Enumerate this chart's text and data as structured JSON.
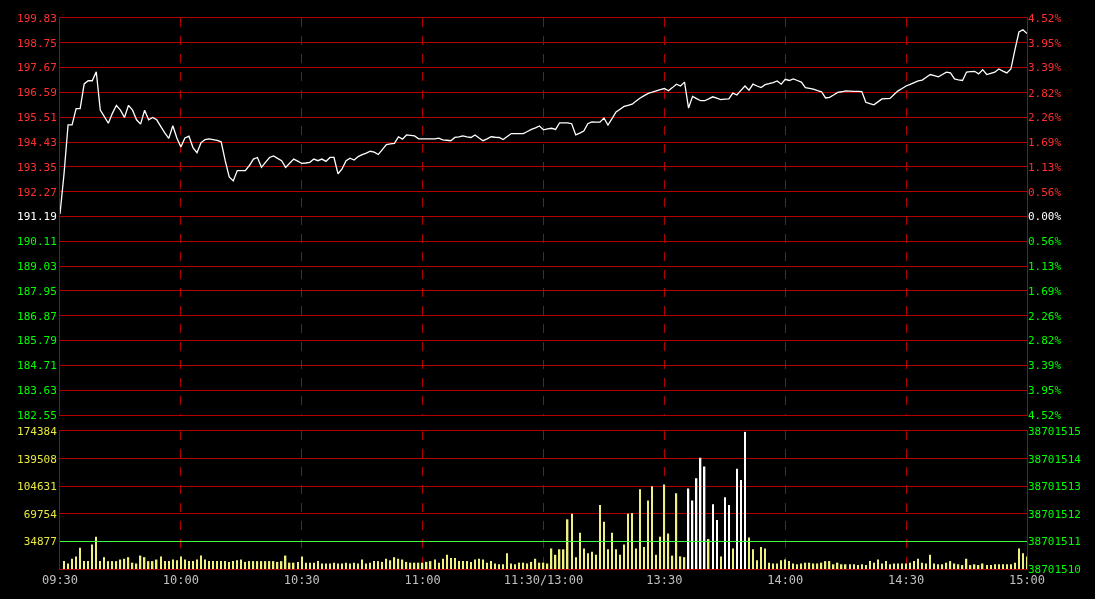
{
  "chart_data": [
    {
      "type": "line",
      "grid": true,
      "tick_labels": "y",
      "categories": [
        null,
        null,
        null,
        null,
        null,
        null,
        null,
        null,
        null,
        null,
        null,
        null,
        null,
        null,
        null,
        null,
        null,
        null,
        null,
        null,
        null,
        null,
        null,
        null,
        null,
        null,
        null,
        null,
        null,
        null,
        null,
        null,
        null,
        null,
        null,
        null,
        null,
        null,
        null,
        null,
        null,
        null,
        null,
        null,
        null,
        null,
        null,
        null,
        null,
        null,
        null,
        null,
        null,
        null,
        null,
        null,
        null,
        null,
        null,
        null,
        null,
        null,
        null,
        null,
        null,
        null,
        null,
        null,
        null,
        null,
        null,
        null,
        null,
        null,
        null,
        null,
        null,
        null,
        null,
        null,
        null,
        null,
        null,
        null,
        null,
        null,
        null,
        null,
        null,
        null,
        null,
        null,
        null,
        null,
        null,
        null,
        null,
        null,
        null,
        null,
        null,
        null,
        null,
        null,
        null,
        null,
        null,
        null,
        null,
        null,
        null,
        null,
        null,
        null,
        null,
        null,
        null,
        null,
        null,
        null,
        null,
        null,
        null,
        null,
        null,
        null,
        null,
        null,
        null,
        null,
        null,
        null,
        null,
        null,
        null,
        null,
        null,
        null,
        null,
        null,
        null,
        null,
        null,
        null,
        null,
        null,
        null,
        null,
        null,
        null,
        null,
        null,
        null,
        null,
        null,
        null,
        null,
        null,
        null,
        null,
        null,
        null,
        null,
        null,
        null,
        null,
        null,
        null,
        null,
        null,
        null,
        null,
        null,
        null,
        null,
        null,
        null,
        null,
        null,
        null,
        null,
        null,
        null,
        null,
        null,
        null,
        null,
        null,
        null,
        null,
        null,
        null,
        null,
        null,
        null,
        null,
        null,
        null,
        null,
        null,
        null,
        null,
        null,
        null,
        null,
        null,
        null,
        null,
        null,
        null,
        null,
        null,
        null,
        null,
        null,
        null,
        null,
        null,
        null,
        null,
        null,
        null,
        null,
        null,
        null,
        null,
        null,
        null,
        null,
        null,
        null,
        null,
        null,
        null,
        null,
        null,
        null,
        null,
        null,
        null,
        null
      ],
      "series": [
        {
          "color": "#ffffff",
          "values": [
            191.3,
            193.05,
            195.18,
            195.18,
            195.89,
            195.89,
            196.96,
            197.1,
            197.1,
            197.49,
            195.82,
            195.54,
            195.25,
            195.68,
            196.03,
            195.82,
            195.5,
            196.03,
            195.82,
            195.4,
            195.21,
            195.82,
            195.4,
            195.5,
            195.4,
            195.11,
            194.83,
            194.59,
            195.14,
            194.61,
            194.22,
            194.61,
            194.69,
            194.19,
            193.97,
            194.4,
            194.54,
            194.57,
            194.54,
            194.5,
            194.44,
            193.62,
            192.91,
            192.74,
            193.19,
            193.19,
            193.19,
            193.41,
            193.69,
            193.76,
            193.33,
            193.55,
            193.76,
            193.83,
            193.72,
            193.62,
            193.33,
            193.51,
            193.69,
            193.6,
            193.5,
            193.52,
            193.55,
            193.69,
            193.62,
            193.69,
            193.59,
            193.76,
            193.76,
            193.05,
            193.26,
            193.62,
            193.73,
            193.65,
            193.8,
            193.88,
            193.95,
            194.03,
            193.99,
            193.89,
            194.1,
            194.32,
            194.35,
            194.37,
            194.66,
            194.56,
            194.74,
            194.72,
            194.7,
            194.57,
            194.57,
            194.57,
            194.57,
            194.57,
            194.6,
            194.53,
            194.51,
            194.49,
            194.63,
            194.66,
            194.7,
            194.66,
            194.63,
            194.74,
            194.61,
            194.49,
            194.57,
            194.66,
            194.64,
            194.63,
            194.54,
            194.67,
            194.8,
            194.8,
            194.8,
            194.8,
            194.89,
            194.98,
            195.05,
            195.13,
            194.96,
            195.0,
            195.03,
            194.98,
            195.27,
            195.27,
            195.27,
            195.23,
            194.74,
            194.82,
            194.91,
            195.23,
            195.31,
            195.3,
            195.3,
            195.48,
            195.17,
            195.45,
            195.74,
            195.86,
            195.98,
            196.03,
            196.08,
            196.22,
            196.35,
            196.45,
            196.55,
            196.6,
            196.66,
            196.71,
            196.76,
            196.66,
            196.8,
            196.95,
            196.87,
            197.04,
            195.91,
            196.42,
            196.32,
            196.23,
            196.23,
            196.31,
            196.4,
            196.34,
            196.28,
            196.3,
            196.31,
            196.56,
            196.48,
            196.68,
            196.87,
            196.69,
            196.95,
            196.87,
            196.8,
            196.93,
            196.97,
            197.02,
            197.09,
            196.95,
            197.16,
            197.11,
            197.18,
            197.11,
            197.04,
            196.8,
            196.77,
            196.73,
            196.67,
            196.62,
            196.35,
            196.38,
            196.48,
            196.59,
            196.62,
            196.66,
            196.65,
            196.64,
            196.64,
            196.63,
            196.16,
            196.1,
            196.05,
            196.18,
            196.31,
            196.32,
            196.33,
            196.5,
            196.66,
            196.76,
            196.87,
            196.94,
            197.02,
            197.09,
            197.13,
            197.25,
            197.37,
            197.32,
            197.27,
            197.37,
            197.47,
            197.44,
            197.18,
            197.14,
            197.11,
            197.48,
            197.5,
            197.51,
            197.4,
            197.58,
            197.37,
            197.42,
            197.47,
            197.61,
            197.52,
            197.44,
            197.61,
            198.44,
            199.22,
            199.32,
            199.15
          ]
        }
      ],
      "ylim": [
        182.55,
        199.83
      ],
      "yticks": [
        199.83,
        198.75,
        197.67,
        196.59,
        195.51,
        194.43,
        193.35,
        192.27,
        191.19,
        190.11,
        189.03,
        187.95,
        186.87,
        185.79,
        184.71,
        183.63,
        182.55
      ],
      "y2lim": [
        -4.52,
        4.52
      ],
      "y2ticks": [
        {
          "value": 4.52,
          "label": "4.52%"
        },
        {
          "value": 3.95,
          "label": "3.95%"
        },
        {
          "value": 3.39,
          "label": "3.39%"
        },
        {
          "value": 2.82,
          "label": "2.82%"
        },
        {
          "value": 2.26,
          "label": "2.26%"
        },
        {
          "value": 1.69,
          "label": "1.69%"
        },
        {
          "value": 1.13,
          "label": "1.13%"
        },
        {
          "value": 0.56,
          "label": "0.56%"
        },
        {
          "value": 0,
          "label": "0.00%"
        },
        {
          "value": -0.56,
          "label": "0.56%"
        },
        {
          "value": -1.13,
          "label": "1.13%"
        },
        {
          "value": -1.69,
          "label": "1.69%"
        },
        {
          "value": -2.26,
          "label": "2.26%"
        },
        {
          "value": -2.82,
          "label": "2.82%"
        },
        {
          "value": -3.39,
          "label": "3.39%"
        },
        {
          "value": -3.95,
          "label": "3.95%"
        },
        {
          "value": -4.52,
          "label": "4.52%"
        }
      ]
    },
    {
      "type": "bar",
      "grid": true,
      "categories": [
        "09:30",
        null,
        null,
        null,
        null,
        null,
        null,
        null,
        null,
        null,
        null,
        null,
        null,
        null,
        null,
        null,
        null,
        null,
        null,
        null,
        null,
        null,
        null,
        null,
        null,
        null,
        null,
        null,
        null,
        null,
        "10:00",
        null,
        null,
        null,
        null,
        null,
        null,
        null,
        null,
        null,
        null,
        null,
        null,
        null,
        null,
        null,
        null,
        null,
        null,
        null,
        null,
        null,
        null,
        null,
        null,
        null,
        null,
        null,
        null,
        null,
        "10:30",
        null,
        null,
        null,
        null,
        null,
        null,
        null,
        null,
        null,
        null,
        null,
        null,
        null,
        null,
        null,
        null,
        null,
        null,
        null,
        null,
        null,
        null,
        null,
        null,
        null,
        null,
        null,
        null,
        null,
        "11:00",
        null,
        null,
        null,
        null,
        null,
        null,
        null,
        null,
        null,
        null,
        null,
        null,
        null,
        null,
        null,
        null,
        null,
        null,
        null,
        null,
        null,
        null,
        null,
        null,
        null,
        null,
        null,
        null,
        null,
        "11:30/13:00",
        null,
        null,
        null,
        null,
        null,
        null,
        null,
        null,
        null,
        null,
        null,
        null,
        null,
        null,
        null,
        null,
        null,
        null,
        null,
        null,
        null,
        null,
        null,
        null,
        null,
        null,
        null,
        null,
        null,
        "13:30",
        null,
        null,
        null,
        null,
        null,
        null,
        null,
        null,
        null,
        null,
        null,
        null,
        null,
        null,
        null,
        null,
        null,
        null,
        null,
        null,
        null,
        null,
        null,
        null,
        null,
        null,
        null,
        null,
        null,
        "14:00",
        null,
        null,
        null,
        null,
        null,
        null,
        null,
        null,
        null,
        null,
        null,
        null,
        null,
        null,
        null,
        null,
        null,
        null,
        null,
        null,
        null,
        null,
        null,
        null,
        null,
        null,
        null,
        null,
        null,
        "14:30",
        null,
        null,
        null,
        null,
        null,
        null,
        null,
        null,
        null,
        null,
        null,
        null,
        null,
        null,
        null,
        null,
        null,
        null,
        null,
        null,
        null,
        null,
        null,
        null,
        null,
        null,
        null,
        null,
        null,
        "15:00"
      ],
      "series": [
        {
          "colors": [
            "#f0f080",
            "#f0f080",
            "#f0f080",
            "#f0f080",
            "#f0f080",
            "#f0f080",
            "#f0f080",
            "#f0f080",
            "#f0f080",
            "#f0f080",
            "#f0f080",
            "#f0f080",
            "#f0f080",
            "#f0f080",
            "#f0f080",
            "#f0f080",
            "#f0f080",
            "#f0f080",
            "#f0f080",
            "#f0f080",
            "#f0f080",
            "#f0f080",
            "#f0f080",
            "#f0f080",
            "#f0f080",
            "#f0f080",
            "#f0f080",
            "#f0f080",
            "#f0f080",
            "#f0f080",
            "#f0f080",
            "#f0f080",
            "#f0f080",
            "#f0f080",
            "#f0f080",
            "#f0f080",
            "#f0f080",
            "#f0f080",
            "#f0f080",
            "#f0f080",
            "#f0f080",
            "#f0f080",
            "#f0f080",
            "#f0f080",
            "#f0f080",
            "#f0f080",
            "#f0f080",
            "#f0f080",
            "#f0f080",
            "#f0f080",
            "#f0f080",
            "#f0f080",
            "#f0f080",
            "#f0f080",
            "#f0f080",
            "#f0f080",
            "#f0f080",
            "#f0f080",
            "#f0f080",
            "#f0f080",
            "#f0f080",
            "#f0f080",
            "#f0f080",
            "#f0f080",
            "#f0f080",
            "#f0f080",
            "#f0f080",
            "#f0f080",
            "#f0f080",
            "#f0f080",
            "#f0f080",
            "#f0f080",
            "#f0f080",
            "#f0f080",
            "#f0f080",
            "#f0f080",
            "#f0f080",
            "#f0f080",
            "#f0f080",
            "#f0f080",
            "#f0f080",
            "#f0f080",
            "#f0f080",
            "#f0f080",
            "#f0f080",
            "#f0f080",
            "#f0f080",
            "#f0f080",
            "#f0f080",
            "#f0f080",
            "#f0f080",
            "#f0f080",
            "#f0f080",
            "#f0f080",
            "#f0f080",
            "#f0f080",
            "#f0f080",
            "#f0f080",
            "#f0f080",
            "#f0f080",
            "#f0f080",
            "#f0f080",
            "#f0f080",
            "#f0f080",
            "#f0f080",
            "#f0f080",
            "#f0f080",
            "#f0f080",
            "#f0f080",
            "#f0f080",
            "#f0f080",
            "#f0f080",
            "#f0f080",
            "#f0f080",
            "#f0f080",
            "#f0f080",
            "#f0f080",
            "#f0f080",
            "#f0f080",
            "#f0f080",
            "#f0f080",
            "#f0f080",
            "#f0f080",
            "#f0f080",
            "#f0f080",
            "#f0f080",
            "#f0f080",
            "#f0f080",
            "#f0f080",
            "#f0f080",
            "#f0f080",
            "#f0f080",
            "#f0f080",
            "#f0f080",
            "#f0f080",
            "#f0f080",
            "#f0f080",
            "#f0f080",
            "#f0f080",
            "#f0f080",
            "#f0f080",
            "#f0f080",
            "#f0f080",
            "#f0f080",
            "#f0f080",
            "#f0f080",
            "#f0f080",
            "#f0f080",
            "#f0f080",
            "#f0f080",
            "#f0f080",
            "#f0f080",
            "#f0f080",
            "#f0f080",
            "#f0f080",
            "#f0f080",
            "#ffffff",
            "#ffffff",
            "#ffffff",
            "#ffffff",
            "#ffffff",
            "#f0f080",
            "#ffffff",
            "#ffffff",
            "#f0f080",
            "#ffffff",
            "#ffffff",
            "#f0f080",
            "#ffffff",
            "#ffffff",
            "#ffffff",
            "#f0f080",
            "#f0f080",
            "#f0f080",
            "#f0f080",
            "#f0f080",
            "#f0f080",
            "#f0f080",
            "#f0f080",
            "#f0f080",
            "#f0f080",
            "#f0f080",
            "#f0f080",
            "#f0f080",
            "#f0f080",
            "#f0f080",
            "#f0f080",
            "#f0f080",
            "#f0f080",
            "#f0f080",
            "#f0f080",
            "#f0f080",
            "#f0f080",
            "#f0f080",
            "#f0f080",
            "#f0f080",
            "#f0f080",
            "#f0f080",
            "#f0f080",
            "#f0f080",
            "#f0f080",
            "#f0f080",
            "#f0f080",
            "#f0f080",
            "#f0f080",
            "#f0f080",
            "#f0f080",
            "#f0f080",
            "#f0f080",
            "#f0f080",
            "#f0f080",
            "#f0f080",
            "#f0f080",
            "#f0f080",
            "#f0f080",
            "#f0f080",
            "#f0f080",
            "#f0f080",
            "#f0f080",
            "#f0f080",
            "#f0f080",
            "#f0f080",
            "#f0f080",
            "#f0f080",
            "#f0f080",
            "#f0f080",
            "#f0f080",
            "#f0f080",
            "#f0f080",
            "#f0f080",
            "#f0f080",
            "#f0f080",
            "#f0f080",
            "#f0f080",
            "#f0f080",
            "#f0f080",
            "#f0f080",
            "#f0f080",
            "#f0f080",
            "#f0f080",
            "#f0f080"
          ],
          "values": [
            null,
            10000,
            7000,
            13000,
            16000,
            27000,
            10000,
            10000,
            31000,
            41000,
            10000,
            15000,
            10000,
            10000,
            10000,
            12000,
            13000,
            15000,
            8000,
            7000,
            17000,
            15000,
            10000,
            10000,
            12000,
            16000,
            10000,
            10000,
            12000,
            11000,
            16000,
            12000,
            10000,
            10000,
            12000,
            17000,
            12000,
            10000,
            10000,
            10000,
            10000,
            10000,
            9000,
            10000,
            11000,
            12000,
            9000,
            10000,
            10000,
            10000,
            10000,
            10000,
            10000,
            10000,
            9000,
            10000,
            17000,
            8000,
            8000,
            9000,
            16000,
            8000,
            8000,
            8000,
            10000,
            7000,
            7000,
            7000,
            8000,
            7000,
            7000,
            8000,
            7000,
            8000,
            7000,
            12000,
            7000,
            8000,
            10000,
            10000,
            9000,
            13000,
            11000,
            15000,
            13000,
            12000,
            9000,
            8000,
            8000,
            8000,
            8000,
            9000,
            10000,
            12000,
            8000,
            13000,
            18000,
            14000,
            14000,
            10000,
            10000,
            10000,
            9000,
            12000,
            13000,
            12000,
            8000,
            10000,
            7000,
            6000,
            6000,
            20000,
            7000,
            6000,
            8000,
            8000,
            7000,
            9000,
            13000,
            8000,
            8000,
            7000,
            26000,
            18000,
            25000,
            25000,
            63000,
            70000,
            15000,
            46000,
            26000,
            20000,
            22000,
            18000,
            81000,
            60000,
            25000,
            46000,
            25000,
            18000,
            31000,
            70000,
            71000,
            26000,
            101000,
            28000,
            87000,
            105000,
            18000,
            41000,
            107000,
            45000,
            17000,
            96000,
            16000,
            15000,
            102000,
            87000,
            115000,
            141000,
            130000,
            38000,
            82000,
            62000,
            16000,
            91000,
            81000,
            26000,
            127000,
            113000,
            174000,
            40000,
            25000,
            11000,
            28000,
            26000,
            8000,
            7000,
            7000,
            11000,
            12000,
            10000,
            7000,
            6000,
            7000,
            8000,
            8000,
            7000,
            7000,
            8000,
            10000,
            10000,
            6000,
            8000,
            6000,
            6000,
            6000,
            6000,
            5000,
            6000,
            5000,
            10000,
            8000,
            12000,
            7000,
            10000,
            6000,
            7000,
            7000,
            7000,
            7000,
            8000,
            10000,
            13000,
            8000,
            7000,
            18000,
            7000,
            6000,
            6000,
            8000,
            10000,
            7000,
            6000,
            5000,
            13000,
            5000,
            6000,
            5000,
            7000,
            5000,
            5000,
            6000,
            6000,
            6000,
            6000,
            6000,
            8000,
            26000,
            20000,
            16000
          ]
        }
      ],
      "ylim": [
        0,
        174384
      ],
      "yticks": [
        174384,
        139508,
        104631,
        69754,
        34877
      ],
      "y2lim": [
        38701510,
        38701515
      ],
      "y2ticks": [
        38701515,
        38701514,
        38701513,
        38701512,
        38701511,
        38701510
      ],
      "ref_lines": [
        {
          "axis": "y",
          "value": 34877,
          "color": "#40ff40"
        }
      ]
    }
  ]
}
